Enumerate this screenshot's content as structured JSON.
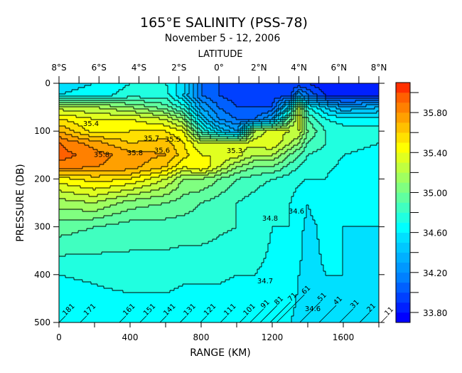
{
  "chart_data": {
    "type": "heatmap",
    "title": "165°E SALINITY (PSS-78)",
    "subtitle": "November 5 - 12, 2006",
    "top_axis_label": "LATITUDE",
    "top_ticks": [
      {
        "km": 0,
        "label": "8°S"
      },
      {
        "km": 225,
        "label": "6°S"
      },
      {
        "km": 450,
        "label": "4°S"
      },
      {
        "km": 675,
        "label": "2°S"
      },
      {
        "km": 900,
        "label": "0°"
      },
      {
        "km": 1125,
        "label": "2°N"
      },
      {
        "km": 1350,
        "label": "4°N"
      },
      {
        "km": 1575,
        "label": "6°N"
      },
      {
        "km": 1800,
        "label": "8°N"
      }
    ],
    "xlabel": "RANGE (KM)",
    "ylabel": "PRESSURE (DB)",
    "xlim": [
      0,
      1800
    ],
    "ylim": [
      0,
      500
    ],
    "x_ticks": [
      0,
      400,
      800,
      1200,
      1600
    ],
    "y_ticks": [
      0,
      100,
      200,
      300,
      400,
      500
    ],
    "colorbar": {
      "min": 33.7,
      "max": 36.1,
      "step": 0.1,
      "labels": [
        "33.80",
        "34.20",
        "34.60",
        "35.00",
        "35.40",
        "35.80"
      ],
      "colors": [
        "#0000ff",
        "#0020ff",
        "#0040ff",
        "#0060ff",
        "#0080ff",
        "#0098ff",
        "#00b0ff",
        "#00c8ff",
        "#00e0ff",
        "#00ffff",
        "#20ffe0",
        "#40ffc0",
        "#60ffa0",
        "#80ff80",
        "#a0ff60",
        "#c0ff40",
        "#e0ff20",
        "#ffff00",
        "#ffe000",
        "#ffc000",
        "#ffa000",
        "#ff8000",
        "#ff6000",
        "#ff3000"
      ]
    },
    "grid_km": [
      0,
      200,
      400,
      600,
      700,
      800,
      900,
      1000,
      1100,
      1200,
      1300,
      1350,
      1400,
      1500,
      1600,
      1800
    ],
    "grid_depth": [
      0,
      25,
      50,
      75,
      100,
      125,
      150,
      175,
      200,
      250,
      300,
      400,
      500
    ],
    "salinity": [
      [
        34.55,
        34.6,
        34.7,
        34.7,
        34.55,
        34.1,
        34.0,
        34.0,
        33.9,
        33.9,
        33.9,
        33.9,
        33.9,
        33.8,
        33.8,
        33.8
      ],
      [
        34.6,
        34.65,
        34.75,
        34.75,
        34.5,
        34.1,
        34.0,
        33.95,
        33.95,
        33.95,
        33.95,
        34.3,
        34.1,
        33.9,
        33.85,
        33.85
      ],
      [
        35.25,
        35.2,
        35.1,
        34.95,
        34.75,
        34.3,
        34.1,
        34.0,
        34.0,
        34.0,
        34.6,
        35.2,
        34.7,
        34.5,
        34.3,
        34.4
      ],
      [
        35.5,
        35.4,
        35.4,
        35.3,
        35.1,
        34.5,
        34.2,
        34.1,
        34.1,
        34.3,
        35.0,
        35.35,
        34.9,
        34.7,
        34.65,
        34.65
      ],
      [
        35.7,
        35.45,
        35.5,
        35.5,
        35.4,
        34.8,
        34.5,
        34.3,
        35.2,
        35.35,
        35.3,
        35.3,
        35.0,
        34.8,
        34.75,
        34.75
      ],
      [
        35.9,
        35.75,
        35.6,
        35.65,
        35.5,
        35.3,
        35.3,
        35.3,
        35.35,
        35.4,
        35.2,
        35.1,
        34.9,
        34.8,
        34.72,
        34.7
      ],
      [
        35.95,
        35.85,
        35.75,
        35.7,
        35.55,
        35.4,
        35.4,
        35.35,
        35.2,
        35.2,
        35.0,
        34.9,
        34.8,
        34.75,
        34.7,
        34.68
      ],
      [
        35.85,
        35.8,
        35.75,
        35.6,
        35.4,
        35.5,
        35.3,
        35.1,
        35.0,
        35.0,
        34.85,
        34.8,
        34.75,
        34.72,
        34.68,
        34.65
      ],
      [
        35.45,
        35.55,
        35.5,
        35.3,
        35.1,
        35.1,
        35.0,
        34.9,
        34.85,
        34.8,
        34.75,
        34.72,
        34.7,
        34.7,
        34.65,
        34.6
      ],
      [
        35.15,
        35.2,
        35.05,
        35.0,
        34.95,
        34.9,
        34.85,
        34.8,
        34.75,
        34.7,
        34.7,
        34.65,
        34.6,
        34.65,
        34.62,
        34.6
      ],
      [
        34.95,
        34.9,
        34.85,
        34.85,
        34.85,
        34.85,
        34.82,
        34.8,
        34.75,
        34.7,
        34.7,
        34.62,
        34.58,
        34.62,
        34.6,
        34.6
      ],
      [
        34.7,
        34.72,
        34.75,
        34.75,
        34.72,
        34.72,
        34.72,
        34.7,
        34.7,
        34.68,
        34.65,
        34.6,
        34.58,
        34.6,
        34.6,
        34.58
      ],
      [
        34.6,
        34.62,
        34.62,
        34.62,
        34.62,
        34.62,
        34.62,
        34.62,
        34.62,
        34.6,
        34.6,
        34.58,
        34.55,
        34.55,
        34.55,
        34.55
      ]
    ],
    "contour_labels": [
      {
        "text": "35.4",
        "km": 180,
        "depth": 89
      },
      {
        "text": "35.8",
        "km": 240,
        "depth": 154
      },
      {
        "text": "35.8",
        "km": 428,
        "depth": 150
      },
      {
        "text": "35.7",
        "km": 520,
        "depth": 138
      },
      {
        "text": "35.6",
        "km": 580,
        "depth": 145
      },
      {
        "text": "35.5",
        "km": 640,
        "depth": 140
      },
      {
        "text": "35.3",
        "km": 988,
        "depth": 146
      },
      {
        "text": "34.8",
        "km": 1188,
        "depth": 287
      },
      {
        "text": "34.6",
        "km": 1336,
        "depth": 272
      },
      {
        "text": "34.7",
        "km": 1160,
        "depth": 418
      },
      {
        "text": "34.6",
        "km": 1428,
        "depth": 476
      }
    ],
    "stations": [
      {
        "label": "181",
        "km": 0
      },
      {
        "label": "171",
        "km": 119
      },
      {
        "label": "161",
        "km": 340
      },
      {
        "label": "151",
        "km": 455
      },
      {
        "label": "141",
        "km": 568
      },
      {
        "label": "131",
        "km": 681
      },
      {
        "label": "121",
        "km": 795
      },
      {
        "label": "111",
        "km": 908
      },
      {
        "label": "101",
        "km": 1017
      },
      {
        "label": "91",
        "km": 1075
      },
      {
        "label": "81",
        "km": 1132
      },
      {
        "label": "71",
        "km": 1188
      },
      {
        "label": "61",
        "km": 1225
      },
      {
        "label": "51",
        "km": 1355
      },
      {
        "label": "41",
        "km": 1464
      },
      {
        "label": "31",
        "km": 1579
      },
      {
        "label": "21",
        "km": 1692
      },
      {
        "label": "11",
        "km": 1812
      }
    ]
  }
}
